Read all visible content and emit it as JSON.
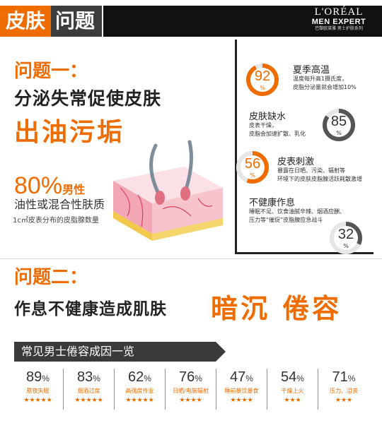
{
  "header": {
    "title_a": "皮肤",
    "title_b": "问题",
    "brand": "L'ORÉAL",
    "brand_sub": "MEN EXPERT",
    "brand_tag": "巴黎欧莱雅  男士护肤系列"
  },
  "problem1": {
    "heading": "问题一：",
    "line1": "分泌失常促使皮肤",
    "line2": "出油污垢",
    "stat_value": "80%",
    "stat_tail": "男性",
    "stat_sub": "油性或混合性肤质",
    "stat_note": "1c㎡皮表分布的皮脂腺数量"
  },
  "panel": {
    "items": [
      {
        "value": "92",
        "unit": "%",
        "title": "夏季高温",
        "desc": [
          "温度每升高1摄氏度，",
          "皮脂分泌量就会增加10%"
        ],
        "ring_color": "#ef6c00",
        "fraction": 0.92
      },
      {
        "value": "85",
        "unit": "%",
        "title": "皮肤缺水",
        "desc": [
          "皮表干燥，",
          "皮脂会加速扩散、乳化"
        ],
        "ring_color": "#555555",
        "fraction": 0.85
      },
      {
        "value": "56",
        "unit": "%",
        "title": "皮表刺激",
        "desc": [
          "暴露在日晒、污染、辐射等",
          "环境下的皮肤皮脂腺活跃耗散激增"
        ],
        "ring_color": "#ef6c00",
        "fraction": 0.56
      },
      {
        "value": "32",
        "unit": "%",
        "title": "不健康作息",
        "desc": [
          "睡眠不足、饮食油腻辛辣、烟酒应酬、",
          "压力等“催促”皮脂腺应急战斗"
        ],
        "ring_color": "#555555",
        "fraction": 0.32
      }
    ]
  },
  "problem2": {
    "heading": "问题二：",
    "line": "作息不健康造成肌肤",
    "emphasis": "暗沉  倦容",
    "list_title": "常见男士倦容成因一览",
    "causes": [
      {
        "value": "89",
        "unit": "%",
        "label": "熬夜失眠",
        "stars": "★★★★★"
      },
      {
        "value": "83",
        "unit": "%",
        "label": "烟酒过度",
        "stars": "★★★★★"
      },
      {
        "value": "62",
        "unit": "%",
        "label": "高强度作业",
        "stars": "★★★★★"
      },
      {
        "value": "76",
        "unit": "%",
        "label": "日晒/电脑辐射",
        "stars": "★★★★"
      },
      {
        "value": "47",
        "unit": "%",
        "label": "睡前暴饮暴食",
        "stars": "★★★★"
      },
      {
        "value": "54",
        "unit": "%",
        "label": "干燥上火",
        "stars": "★★★"
      },
      {
        "value": "71",
        "unit": "%",
        "label": "压力、沮丧",
        "stars": "★★★"
      }
    ]
  },
  "colors": {
    "accent": "#ef6c00",
    "dark": "#3a3a3a"
  }
}
